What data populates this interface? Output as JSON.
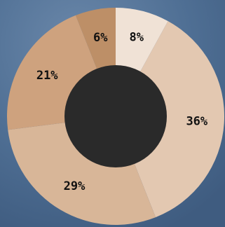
{
  "chart_data": {
    "type": "pie",
    "donut": true,
    "slices": [
      {
        "label": "8%",
        "value": 8,
        "color": "#f0e2d6"
      },
      {
        "label": "36%",
        "value": 36,
        "color": "#e3c8b1"
      },
      {
        "label": "29%",
        "value": 29,
        "color": "#d8b698"
      },
      {
        "label": "21%",
        "value": 21,
        "color": "#cea27e"
      },
      {
        "label": "6%",
        "value": 6,
        "color": "#bd8f67"
      }
    ],
    "hole_color": "#2a2a2a",
    "background_color": "#4f6f94"
  }
}
